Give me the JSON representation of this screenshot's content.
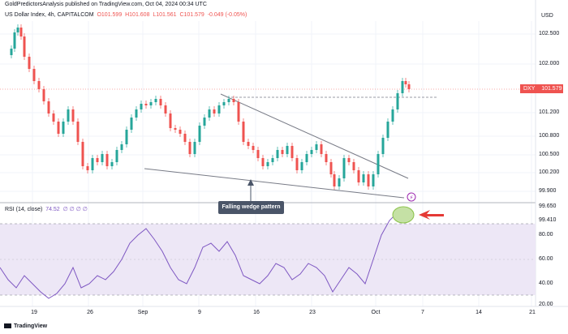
{
  "header": {
    "title": "GoldPredictorsAnalysis published on TradingView.com, Oct 04, 2024 00:34 UTC",
    "instrument": "US Dollar Index, 4h, CAPITALCOM",
    "open": "O101.599",
    "high": "H101.608",
    "low": "L101.561",
    "close": "C101.579",
    "change": "-0.049 (-0.05%)"
  },
  "price_axis": {
    "currency": "USD",
    "ticks": [
      "102.500",
      "102.000",
      "101.200",
      "100.800",
      "100.500",
      "100.200",
      "99.900",
      "99.650",
      "99.410"
    ]
  },
  "price_badge": {
    "symbol": "DXY",
    "value": "101.579",
    "color": "#ef5350"
  },
  "rsi": {
    "label": "RSI (14, close)",
    "value": "74.52",
    "placeholders": "∅ ∅ ∅ ∅",
    "ticks": [
      "80.00",
      "60.00",
      "40.00",
      "20.00"
    ],
    "levels": [
      70,
      30
    ],
    "color": "#7e57c2",
    "band_color": "#ede7f6"
  },
  "time_axis": {
    "ticks": [
      "19",
      "26",
      "Sep",
      "9",
      "16",
      "23",
      "Oct",
      "7",
      "14",
      "21"
    ]
  },
  "annotation": {
    "text": "Falling wedge pattern"
  },
  "logo": {
    "text": "TradingView"
  },
  "colors": {
    "up": "#26a69a",
    "down": "#ef5350",
    "trendline": "#787b86"
  }
}
